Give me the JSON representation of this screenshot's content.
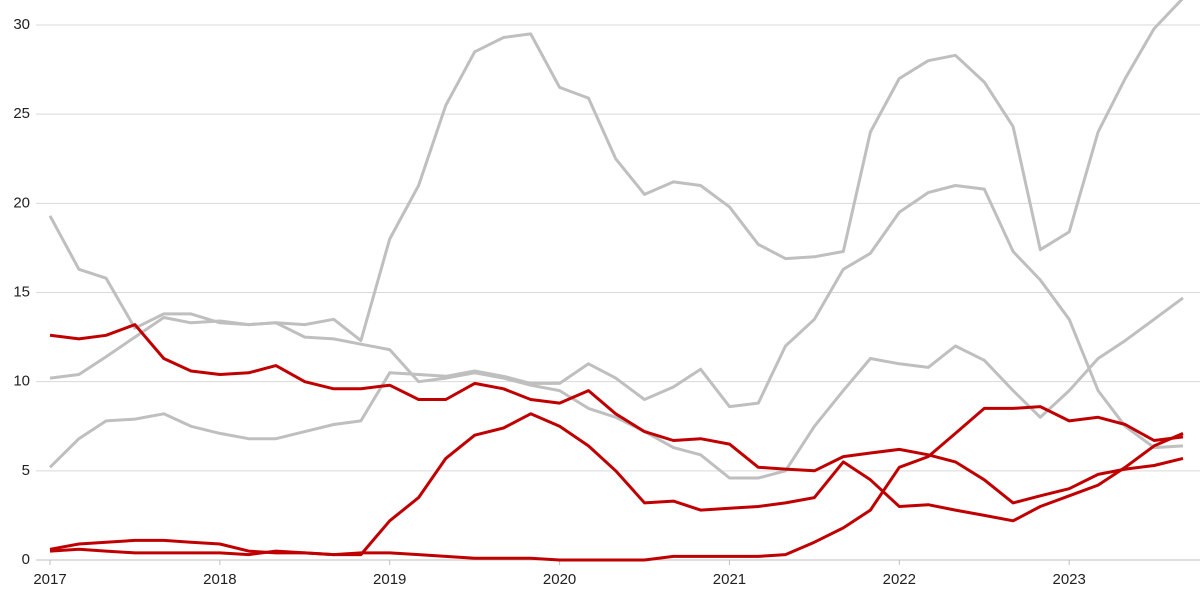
{
  "chart_data": {
    "type": "line",
    "x": [
      2017,
      2017.17,
      2017.33,
      2017.5,
      2017.67,
      2017.83,
      2018,
      2018.17,
      2018.33,
      2018.5,
      2018.67,
      2018.83,
      2019,
      2019.17,
      2019.33,
      2019.5,
      2019.67,
      2019.83,
      2020,
      2020.17,
      2020.33,
      2020.5,
      2020.67,
      2020.83,
      2021,
      2021.17,
      2021.33,
      2021.5,
      2021.67,
      2021.83,
      2022,
      2022.17,
      2022.33,
      2022.5,
      2022.67,
      2022.83,
      2023,
      2023.17,
      2023.33,
      2023.5,
      2023.67
    ],
    "xlim": [
      2017,
      2023.67
    ],
    "xticks": [
      2017,
      2018,
      2019,
      2020,
      2021,
      2022,
      2023
    ],
    "ylim": [
      0,
      30
    ],
    "yticks": [
      0,
      5,
      10,
      15,
      20,
      25,
      30
    ],
    "grid": true,
    "series": [
      {
        "color": "#bfbfbf",
        "values": [
          19.3,
          16.3,
          15.8,
          13,
          13.8,
          13.8,
          13.3,
          13.2,
          13.3,
          13.2,
          13.5,
          12.3,
          18,
          21,
          25.5,
          28.5,
          29.3,
          29.5,
          26.5,
          25.9,
          22.5,
          20.5,
          21.2,
          21,
          19.8,
          17.7,
          16.9,
          17,
          17.3,
          24,
          27,
          28,
          28.3,
          26.8,
          24.3,
          17.4,
          18.4,
          24,
          27,
          29.8,
          31.5
        ]
      },
      {
        "color": "#bfbfbf",
        "values": [
          10.2,
          10.4,
          11.4,
          12.5,
          13.6,
          13.3,
          13.4,
          13.2,
          13.3,
          12.5,
          12.4,
          12.1,
          11.8,
          10,
          10.2,
          10.5,
          10.2,
          9.8,
          9.5,
          8.5,
          8,
          7.2,
          6.3,
          5.9,
          4.6,
          4.6,
          5,
          7.5,
          9.5,
          11.3,
          11,
          10.8,
          12,
          11.2,
          9.5,
          8,
          9.5,
          11.3,
          12.3,
          13.5,
          14.7
        ]
      },
      {
        "color": "#bfbfbf",
        "values": [
          5.2,
          6.8,
          7.8,
          7.9,
          8.2,
          7.5,
          7.1,
          6.8,
          6.8,
          7.2,
          7.6,
          7.8,
          10.5,
          10.4,
          10.3,
          10.6,
          10.3,
          9.9,
          9.9,
          11,
          10.2,
          9,
          9.7,
          10.7,
          8.6,
          8.8,
          12,
          13.5,
          16.3,
          17.2,
          19.5,
          20.6,
          21,
          20.8,
          17.3,
          15.7,
          13.5,
          9.5,
          7.5,
          6.3,
          6.4
        ]
      },
      {
        "color": "#c00000",
        "values": [
          12.6,
          12.4,
          12.6,
          13.2,
          11.3,
          10.6,
          10.4,
          10.5,
          10.9,
          10,
          9.6,
          9.6,
          9.8,
          9,
          9,
          9.9,
          9.6,
          9,
          8.8,
          9.5,
          8.2,
          7.2,
          6.7,
          6.8,
          6.5,
          5.2,
          5.1,
          5,
          5.8,
          6,
          6.2,
          5.9,
          5.5,
          4.5,
          3.2,
          3.6,
          4,
          4.8,
          5.1,
          5.3,
          5.7
        ]
      },
      {
        "color": "#c00000",
        "values": [
          0.6,
          0.9,
          1,
          1.1,
          1.1,
          1,
          0.9,
          0.5,
          0.4,
          0.4,
          0.3,
          0.3,
          2.2,
          3.5,
          5.7,
          7,
          7.4,
          8.2,
          7.5,
          6.4,
          5,
          3.2,
          3.3,
          2.8,
          2.9,
          3,
          3.2,
          3.5,
          5.5,
          4.5,
          3,
          3.1,
          2.8,
          2.5,
          2.2,
          3,
          3.6,
          4.2,
          5.2,
          6.4,
          7.1
        ]
      },
      {
        "color": "#c00000",
        "values": [
          0.5,
          0.6,
          0.5,
          0.4,
          0.4,
          0.4,
          0.4,
          0.3,
          0.5,
          0.4,
          0.3,
          0.4,
          0.4,
          0.3,
          0.2,
          0.1,
          0.1,
          0.1,
          0,
          0,
          0,
          0,
          0.2,
          0.2,
          0.2,
          0.2,
          0.3,
          1,
          1.8,
          2.8,
          5.2,
          5.8,
          7.1,
          8.5,
          8.5,
          8.6,
          7.8,
          8,
          7.6,
          6.7,
          6.9
        ]
      }
    ]
  }
}
